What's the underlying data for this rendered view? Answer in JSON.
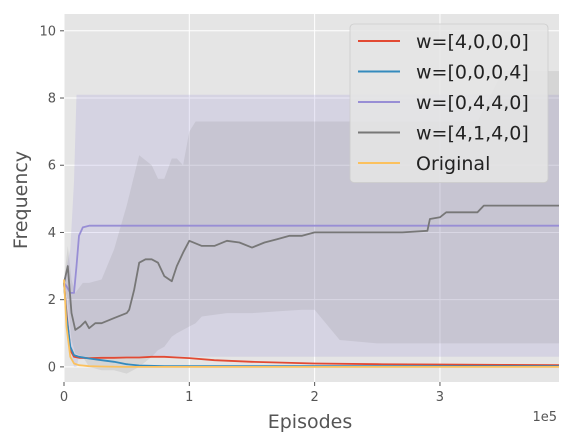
{
  "chart_data": {
    "type": "line",
    "title": "",
    "xlabel": "Episodes",
    "ylabel": "Frequency",
    "x_multiplier_label": "1e5",
    "xlim": [
      0,
      3.95
    ],
    "ylim": [
      -0.45,
      10.5
    ],
    "x_ticks": [
      0,
      1,
      2,
      3
    ],
    "x_tick_labels": [
      "0",
      "1",
      "2",
      "3"
    ],
    "y_ticks": [
      0,
      2,
      4,
      6,
      8,
      10
    ],
    "y_tick_labels": [
      "0",
      "2",
      "4",
      "6",
      "8",
      "10"
    ],
    "grid": true,
    "legend_position": "top-right",
    "style": "ggplot",
    "colors": {
      "axes_bg": "#e5e5e5",
      "grid": "#ffffff",
      "tick_text": "#555555",
      "label_text": "#555555"
    },
    "series": [
      {
        "name": "w=[4,0,0,0]",
        "color": "#e24a33",
        "x": [
          0,
          0.02,
          0.05,
          0.08,
          0.12,
          0.2,
          0.3,
          0.4,
          0.5,
          0.6,
          0.7,
          0.8,
          0.9,
          1.0,
          1.2,
          1.5,
          2.0,
          2.5,
          3.0,
          3.5,
          3.95
        ],
        "y": [
          2.5,
          1.6,
          0.5,
          0.3,
          0.27,
          0.26,
          0.27,
          0.27,
          0.28,
          0.28,
          0.3,
          0.3,
          0.28,
          0.26,
          0.2,
          0.15,
          0.1,
          0.08,
          0.07,
          0.06,
          0.05
        ]
      },
      {
        "name": "w=[0,0,0,4]",
        "color": "#348abd",
        "x": [
          0,
          0.02,
          0.05,
          0.08,
          0.12,
          0.2,
          0.3,
          0.4,
          0.5,
          0.6,
          0.8,
          1.0,
          2.0,
          3.0,
          3.95
        ],
        "y": [
          2.5,
          1.5,
          0.6,
          0.35,
          0.3,
          0.25,
          0.2,
          0.15,
          0.08,
          0.04,
          0.02,
          0.02,
          0.02,
          0.02,
          0.02
        ]
      },
      {
        "name": "w=[0,4,4,0]",
        "color": "#988ed5",
        "x": [
          0,
          0.02,
          0.05,
          0.08,
          0.1,
          0.12,
          0.15,
          0.2,
          0.3,
          1.0,
          2.0,
          3.0,
          3.95
        ],
        "y": [
          2.5,
          2.4,
          2.2,
          2.2,
          3.0,
          3.9,
          4.15,
          4.2,
          4.2,
          4.2,
          4.2,
          4.2,
          4.2
        ]
      },
      {
        "name": "w=[4,1,4,0]",
        "color": "#777777",
        "x": [
          0,
          0.03,
          0.06,
          0.09,
          0.13,
          0.17,
          0.2,
          0.25,
          0.3,
          0.4,
          0.5,
          0.52,
          0.56,
          0.6,
          0.65,
          0.7,
          0.75,
          0.8,
          0.86,
          0.9,
          0.95,
          1.0,
          1.1,
          1.2,
          1.3,
          1.4,
          1.5,
          1.6,
          1.7,
          1.8,
          1.9,
          2.0,
          2.2,
          2.5,
          2.7,
          2.9,
          2.92,
          3.0,
          3.05,
          3.2,
          3.3,
          3.35,
          3.5,
          3.95
        ],
        "y": [
          2.5,
          3.0,
          1.6,
          1.1,
          1.2,
          1.35,
          1.15,
          1.3,
          1.3,
          1.45,
          1.6,
          1.7,
          2.3,
          3.1,
          3.2,
          3.2,
          3.1,
          2.7,
          2.55,
          3.0,
          3.4,
          3.75,
          3.6,
          3.6,
          3.75,
          3.7,
          3.55,
          3.7,
          3.8,
          3.9,
          3.9,
          4.0,
          4.0,
          4.0,
          4.0,
          4.05,
          4.4,
          4.45,
          4.6,
          4.6,
          4.6,
          4.8,
          4.8,
          4.8
        ]
      },
      {
        "name": "Original",
        "color": "#fbc15e",
        "x": [
          0,
          0.02,
          0.05,
          0.08,
          0.12,
          0.2,
          0.3,
          0.5,
          0.7,
          1.0,
          2.0,
          3.0,
          3.95
        ],
        "y": [
          2.6,
          1.2,
          0.3,
          0.1,
          0.05,
          0.02,
          0.01,
          0.0,
          0.0,
          0.0,
          0.0,
          0.0,
          0.0
        ]
      }
    ],
    "bands": [
      {
        "series": "w=[0,4,4,0]",
        "fill": "#988ed5",
        "opacity": 0.2,
        "x": [
          0,
          0.05,
          0.08,
          0.1,
          0.12,
          0.15,
          0.2,
          1.0,
          2.0,
          3.0,
          3.95
        ],
        "upper": [
          2.6,
          3.5,
          5.5,
          8.1,
          8.1,
          8.1,
          8.1,
          8.1,
          8.1,
          8.1,
          8.1
        ],
        "lower": [
          2.4,
          0.5,
          0.0,
          0.0,
          0.3,
          0.3,
          0.3,
          0.3,
          0.3,
          0.3,
          0.3
        ]
      },
      {
        "series": "w=[4,1,4,0]",
        "fill": "#777777",
        "opacity": 0.15,
        "x": [
          0,
          0.03,
          0.06,
          0.09,
          0.15,
          0.2,
          0.3,
          0.4,
          0.5,
          0.6,
          0.7,
          0.75,
          0.8,
          0.86,
          0.9,
          0.95,
          1.0,
          1.05,
          1.1,
          1.2,
          1.3,
          1.5,
          1.7,
          1.9,
          2.0,
          2.2,
          2.5,
          2.9,
          3.0,
          3.3,
          3.5,
          3.95
        ],
        "upper": [
          2.6,
          3.6,
          2.6,
          2.2,
          2.5,
          2.5,
          2.6,
          3.5,
          4.8,
          6.3,
          6.0,
          5.6,
          5.6,
          6.2,
          6.2,
          6.0,
          7.0,
          7.3,
          7.3,
          7.3,
          7.3,
          7.3,
          7.3,
          7.3,
          7.3,
          7.3,
          7.3,
          7.3,
          7.3,
          7.3,
          8.8,
          8.8
        ],
        "lower": [
          2.4,
          2.0,
          0.8,
          0.4,
          0.3,
          0.0,
          -0.1,
          -0.1,
          -0.2,
          0.0,
          0.3,
          0.5,
          0.6,
          0.9,
          1.0,
          1.1,
          1.2,
          1.3,
          1.5,
          1.55,
          1.6,
          1.6,
          1.65,
          1.7,
          1.7,
          0.8,
          0.7,
          0.7,
          0.7,
          0.7,
          0.7,
          0.7
        ]
      }
    ]
  }
}
